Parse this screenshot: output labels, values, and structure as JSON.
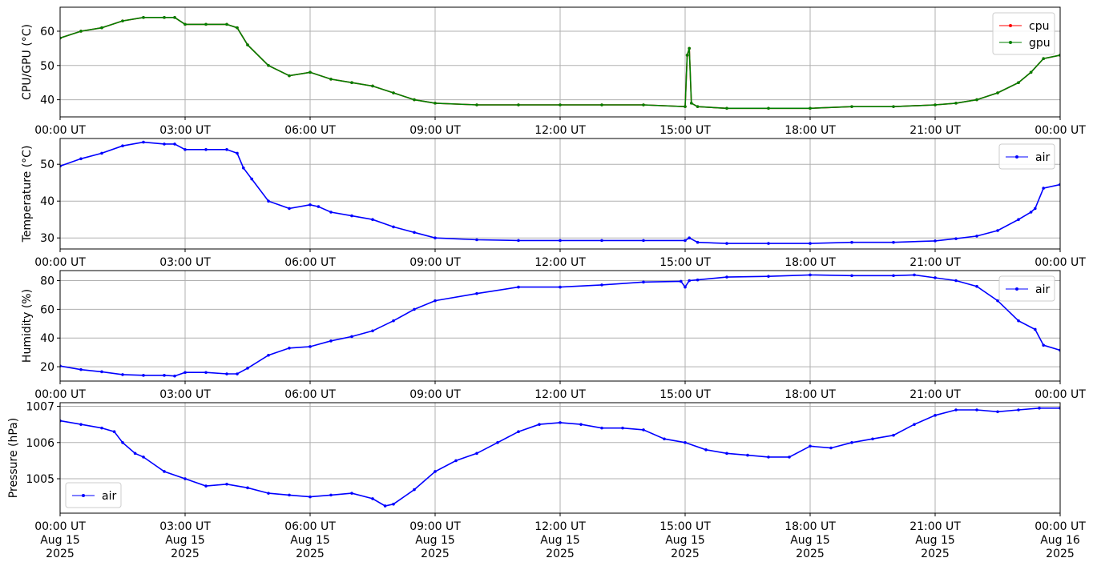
{
  "x_ticks": [
    "00:00 UT",
    "03:00 UT",
    "06:00 UT",
    "09:00 UT",
    "12:00 UT",
    "15:00 UT",
    "18:00 UT",
    "21:00 UT",
    "00:00 UT"
  ],
  "x_ticks_bottom_line2": [
    "Aug 15",
    "Aug 15",
    "Aug 15",
    "Aug 15",
    "Aug 15",
    "Aug 15",
    "Aug 15",
    "Aug 15",
    "Aug 16"
  ],
  "x_ticks_bottom_line3": [
    "2025",
    "2025",
    "2025",
    "2025",
    "2025",
    "2025",
    "2025",
    "2025",
    "2025"
  ],
  "chart_data": [
    {
      "type": "line",
      "ylabel": "CPU/GPU (°C)",
      "xlim": [
        "2025-08-15 00:00",
        "2025-08-16 00:00"
      ],
      "ylim": [
        35,
        67
      ],
      "yticks": [
        40,
        50,
        60
      ],
      "grid": true,
      "legend": "top-right",
      "series": [
        {
          "name": "cpu",
          "color": "#ff0000",
          "x_hours": [
            0,
            0.5,
            1.0,
            1.5,
            2.0,
            2.5,
            2.75,
            3.0,
            3.5,
            4.0,
            4.25,
            4.5,
            5.0,
            5.5,
            6.0,
            6.5,
            7.0,
            7.5,
            8.0,
            8.5,
            9.0,
            10.0,
            11.0,
            12.0,
            13.0,
            14.0,
            15.0,
            15.05,
            15.1,
            15.15,
            15.3,
            16.0,
            17.0,
            18.0,
            19.0,
            20.0,
            21.0,
            21.5,
            22.0,
            22.5,
            23.0,
            23.3,
            23.6,
            24.0
          ],
          "values": [
            58,
            60,
            61,
            63,
            64,
            64,
            64,
            62,
            62,
            62,
            61,
            56,
            50,
            47,
            48,
            46,
            45,
            44,
            42,
            40,
            39,
            38.5,
            38.5,
            38.5,
            38.5,
            38.5,
            38,
            53,
            55,
            39,
            38,
            37.5,
            37.5,
            37.5,
            38,
            38,
            38.5,
            39,
            40,
            42,
            45,
            48,
            52,
            53
          ]
        },
        {
          "name": "gpu",
          "color": "#008000",
          "x_hours": [
            0,
            0.5,
            1.0,
            1.5,
            2.0,
            2.5,
            2.75,
            3.0,
            3.5,
            4.0,
            4.25,
            4.5,
            5.0,
            5.5,
            6.0,
            6.5,
            7.0,
            7.5,
            8.0,
            8.5,
            9.0,
            10.0,
            11.0,
            12.0,
            13.0,
            14.0,
            15.0,
            15.05,
            15.1,
            15.15,
            15.3,
            16.0,
            17.0,
            18.0,
            19.0,
            20.0,
            21.0,
            21.5,
            22.0,
            22.5,
            23.0,
            23.3,
            23.6,
            24.0
          ],
          "values": [
            58,
            60,
            61,
            63,
            64,
            64,
            64,
            62,
            62,
            62,
            61,
            56,
            50,
            47,
            48,
            46,
            45,
            44,
            42,
            40,
            39,
            38.5,
            38.5,
            38.5,
            38.5,
            38.5,
            38,
            53,
            55,
            39,
            38,
            37.5,
            37.5,
            37.5,
            38,
            38,
            38.5,
            39,
            40,
            42,
            45,
            48,
            52,
            53
          ]
        }
      ]
    },
    {
      "type": "line",
      "ylabel": "Temperature (°C)",
      "xlim": [
        "2025-08-15 00:00",
        "2025-08-16 00:00"
      ],
      "ylim": [
        27,
        57
      ],
      "yticks": [
        30,
        40,
        50
      ],
      "grid": true,
      "legend": "top-right",
      "series": [
        {
          "name": "air",
          "color": "#0000ff",
          "x_hours": [
            0,
            0.5,
            1.0,
            1.5,
            2.0,
            2.5,
            2.75,
            3.0,
            3.5,
            4.0,
            4.25,
            4.4,
            4.6,
            5.0,
            5.5,
            6.0,
            6.2,
            6.5,
            7.0,
            7.5,
            8.0,
            8.5,
            9.0,
            10.0,
            11.0,
            12.0,
            13.0,
            14.0,
            15.0,
            15.1,
            15.3,
            16.0,
            17.0,
            18.0,
            19.0,
            20.0,
            21.0,
            21.5,
            22.0,
            22.5,
            23.0,
            23.3,
            23.4,
            23.6,
            24.0
          ],
          "values": [
            49.5,
            51.5,
            53,
            55,
            56,
            55.5,
            55.5,
            54,
            54,
            54,
            53,
            49,
            46,
            40,
            38,
            39,
            38.5,
            37,
            36,
            35,
            33,
            31.5,
            30,
            29.5,
            29.3,
            29.3,
            29.3,
            29.3,
            29.3,
            30,
            28.8,
            28.5,
            28.5,
            28.5,
            28.8,
            28.8,
            29.2,
            29.8,
            30.5,
            32,
            35,
            37,
            38,
            43.5,
            44.5
          ]
        }
      ]
    },
    {
      "type": "line",
      "ylabel": "Humidity (%)",
      "xlim": [
        "2025-08-15 00:00",
        "2025-08-16 00:00"
      ],
      "ylim": [
        10,
        87
      ],
      "yticks": [
        20,
        40,
        60,
        80
      ],
      "grid": true,
      "legend": "top-right",
      "series": [
        {
          "name": "air",
          "color": "#0000ff",
          "x_hours": [
            0,
            0.5,
            1.0,
            1.5,
            2.0,
            2.5,
            2.75,
            3.0,
            3.5,
            4.0,
            4.25,
            4.5,
            5.0,
            5.5,
            6.0,
            6.5,
            7.0,
            7.5,
            8.0,
            8.5,
            9.0,
            10.0,
            11.0,
            12.0,
            13.0,
            14.0,
            14.9,
            15.0,
            15.1,
            15.3,
            16.0,
            17.0,
            18.0,
            19.0,
            20.0,
            20.5,
            21.0,
            21.5,
            22.0,
            22.5,
            23.0,
            23.4,
            23.6,
            24.0
          ],
          "values": [
            20.5,
            18,
            16.5,
            14.5,
            14,
            14,
            13.5,
            16,
            16,
            15,
            15,
            19,
            28,
            33,
            34,
            38,
            41,
            45,
            52,
            60,
            66,
            71,
            75.5,
            75.5,
            77,
            79,
            79.5,
            75.5,
            80,
            80.5,
            82.5,
            83,
            84,
            83.5,
            83.5,
            84,
            82,
            80,
            76,
            66,
            52,
            46,
            35,
            31.5
          ]
        }
      ]
    },
    {
      "type": "line",
      "ylabel": "Pressure (hPa)",
      "xlim": [
        "2025-08-15 00:00",
        "2025-08-16 00:00"
      ],
      "ylim": [
        1004.05,
        1007.1
      ],
      "yticks": [
        1005,
        1006,
        1007
      ],
      "grid": true,
      "legend": "lower-left",
      "series": [
        {
          "name": "air",
          "color": "#0000ff",
          "x_hours": [
            0,
            0.5,
            1.0,
            1.3,
            1.5,
            1.8,
            2.0,
            2.5,
            3.0,
            3.5,
            4.0,
            4.5,
            5.0,
            5.5,
            6.0,
            6.5,
            7.0,
            7.5,
            7.8,
            8.0,
            8.5,
            9.0,
            9.5,
            10.0,
            10.5,
            11.0,
            11.5,
            12.0,
            12.5,
            13.0,
            13.5,
            14.0,
            14.5,
            15.0,
            15.5,
            16.0,
            16.5,
            17.0,
            17.5,
            18.0,
            18.5,
            19.0,
            19.5,
            20.0,
            20.5,
            21.0,
            21.5,
            22.0,
            22.5,
            23.0,
            23.5,
            24.0
          ],
          "values": [
            1006.6,
            1006.5,
            1006.4,
            1006.3,
            1006.0,
            1005.7,
            1005.6,
            1005.2,
            1005.0,
            1004.8,
            1004.85,
            1004.75,
            1004.6,
            1004.55,
            1004.5,
            1004.55,
            1004.6,
            1004.45,
            1004.25,
            1004.3,
            1004.7,
            1005.2,
            1005.5,
            1005.7,
            1006.0,
            1006.3,
            1006.5,
            1006.55,
            1006.5,
            1006.4,
            1006.4,
            1006.35,
            1006.1,
            1006.0,
            1005.8,
            1005.7,
            1005.65,
            1005.6,
            1005.6,
            1005.9,
            1005.85,
            1006.0,
            1006.1,
            1006.2,
            1006.5,
            1006.75,
            1006.9,
            1006.9,
            1006.85,
            1006.9,
            1006.95,
            1006.95
          ]
        }
      ]
    }
  ]
}
